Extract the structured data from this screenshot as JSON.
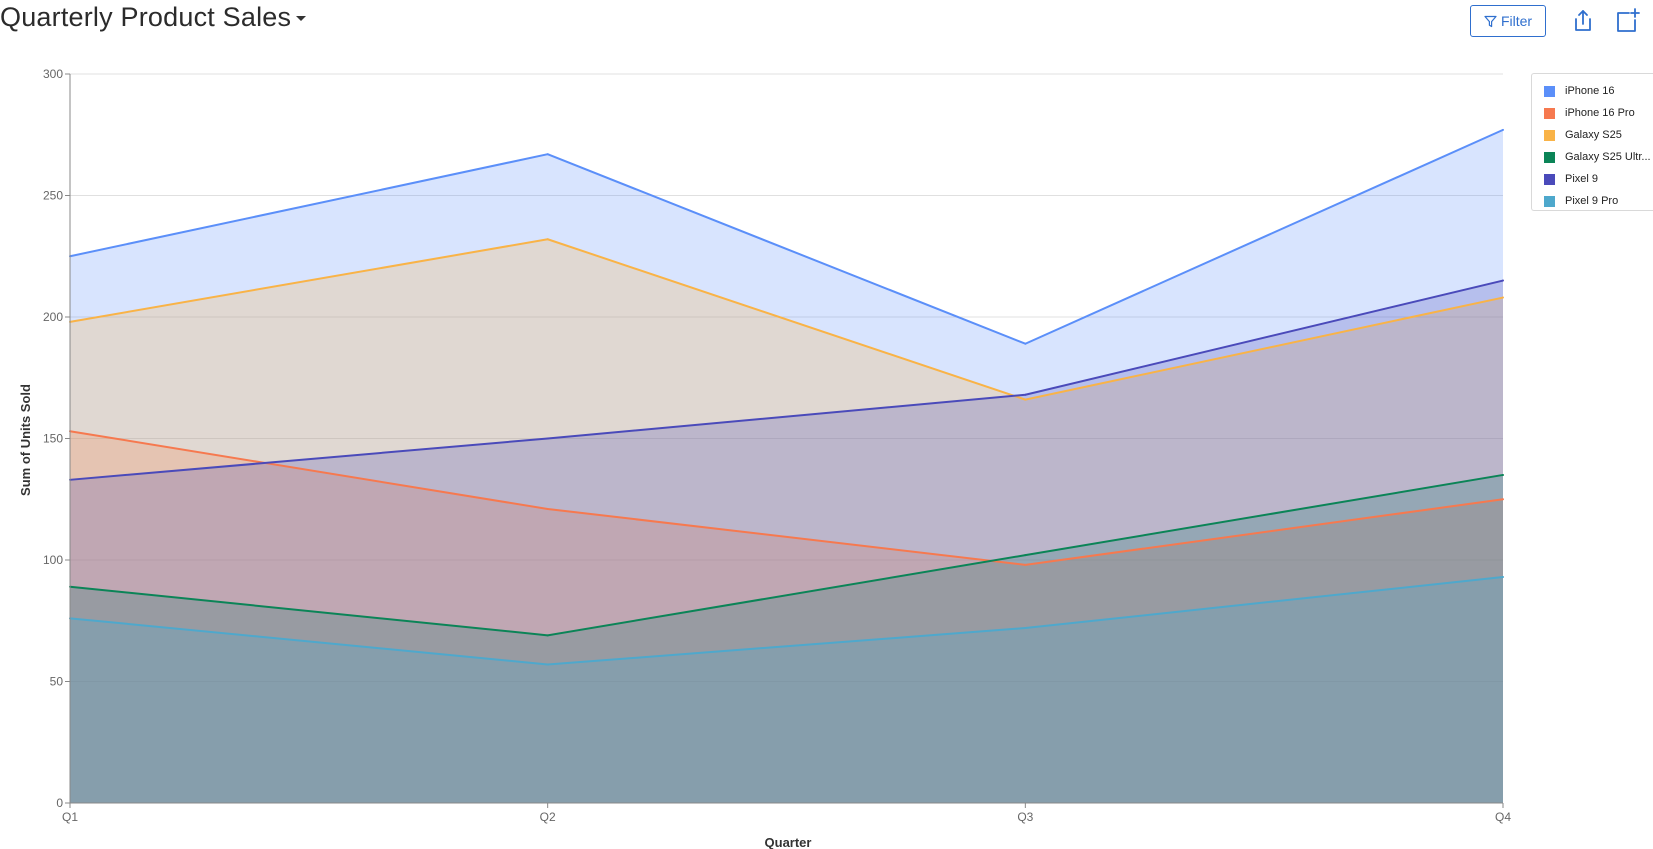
{
  "header": {
    "title": "Quarterly Product Sales",
    "filter_label": "Filter",
    "icons": {
      "title_menu": "chevron-down-icon",
      "filter": "filter-icon",
      "share": "share-icon",
      "add": "add-to-dashboard-icon"
    }
  },
  "colors": {
    "accent": "#2f6fce",
    "grid": "#e0e0e0",
    "axis": "#888888"
  },
  "chart_data": {
    "type": "area",
    "title": "Quarterly Product Sales",
    "xlabel": "Quarter",
    "ylabel": "Sum of Units Sold",
    "categories": [
      "Q1",
      "Q2",
      "Q3",
      "Q4"
    ],
    "ylim": [
      0,
      300
    ],
    "yticks": [
      0,
      50,
      100,
      150,
      200,
      250,
      300
    ],
    "grid": true,
    "legend_position": "top-right",
    "series": [
      {
        "name": "iPhone 16",
        "display": "iPhone 16",
        "color": "#5b8ff9",
        "values": [
          225,
          267,
          189,
          277
        ]
      },
      {
        "name": "iPhone 16 Pro",
        "display": "iPhone 16 Pro",
        "color": "#f6794f",
        "values": [
          153,
          121,
          98,
          125
        ]
      },
      {
        "name": "Galaxy S25",
        "display": "Galaxy S25",
        "color": "#f9b347",
        "values": [
          198,
          232,
          166,
          208
        ]
      },
      {
        "name": "Galaxy S25 Ultra",
        "display": "Galaxy S25 Ultr...",
        "color": "#0b8457",
        "values": [
          89,
          69,
          102,
          135
        ]
      },
      {
        "name": "Pixel 9",
        "display": "Pixel 9",
        "color": "#4a4aba",
        "values": [
          133,
          150,
          168,
          215
        ]
      },
      {
        "name": "Pixel 9 Pro",
        "display": "Pixel 9 Pro",
        "color": "#4ea8cc",
        "values": [
          76,
          57,
          72,
          93
        ]
      }
    ]
  }
}
